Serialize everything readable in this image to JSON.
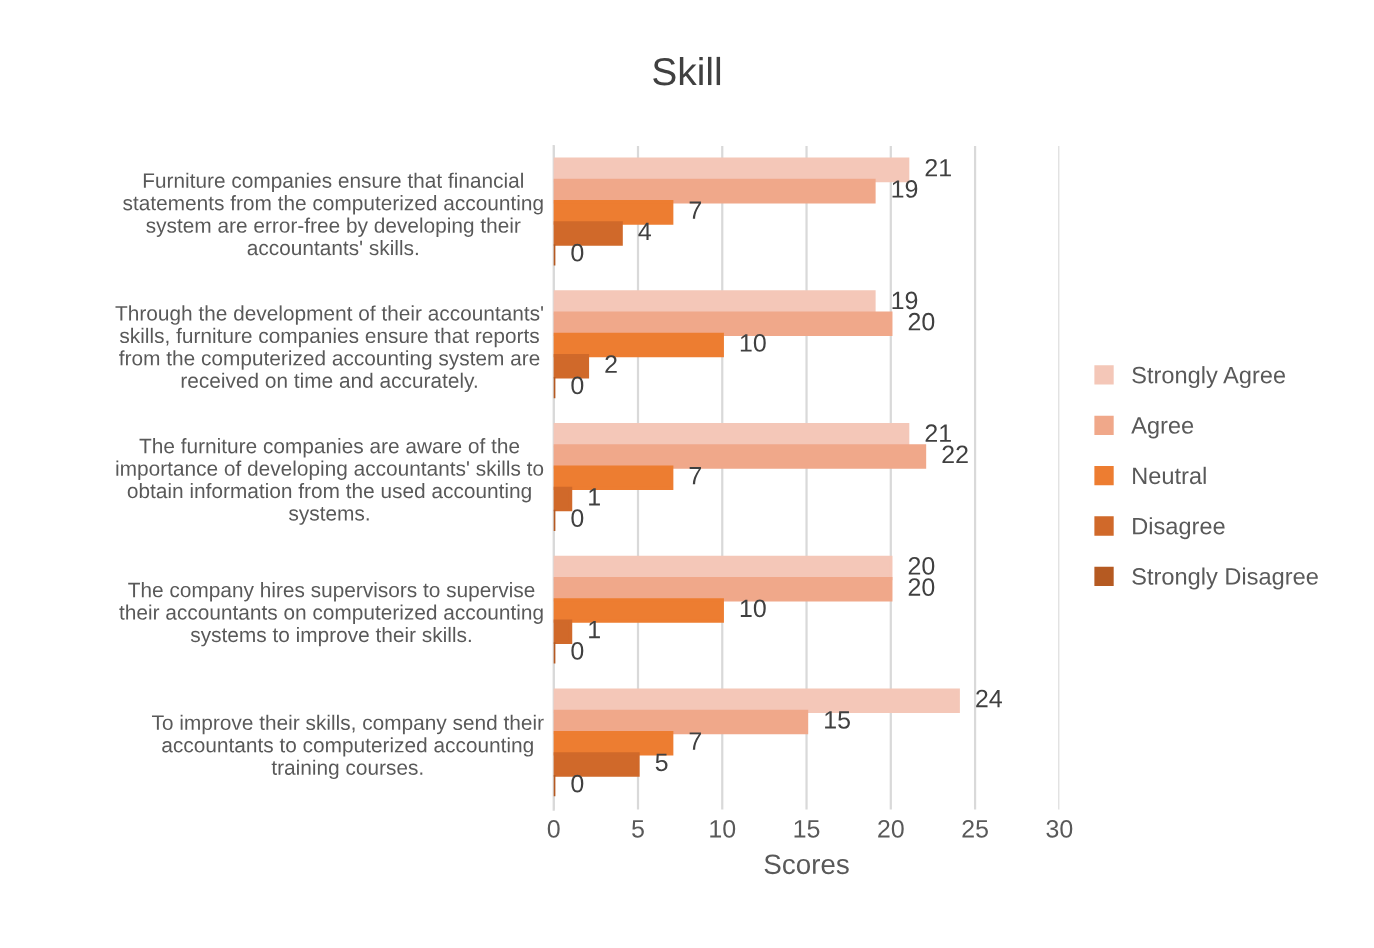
{
  "chart_data": {
    "type": "bar",
    "orientation": "horizontal",
    "title": "Skill",
    "xlabel": "Scores",
    "categories": [
      "Furniture companies ensure that financial\nstatements from the computerized accounting\nsystem are error-free by developing their\naccountants' skills.",
      "Through the development of their accountants'\nskills, furniture companies ensure that reports\nfrom the computerized accounting system are\nreceived on time and accurately.",
      "The furniture companies are aware of the\nimportance of developing accountants' skills to\nobtain information from the used accounting\nsystems.",
      "The company hires supervisors to supervise\ntheir accountants on computerized accounting\nsystems to improve their skills.",
      "To improve their skills, company send their\naccountants to computerized accounting\ntraining courses."
    ],
    "series": [
      {
        "name": "Strongly Agree",
        "color": "#f4c7b8",
        "values": [
          21,
          19,
          21,
          20,
          24
        ]
      },
      {
        "name": "Agree",
        "color": "#f0a88a",
        "values": [
          19,
          20,
          22,
          20,
          15
        ]
      },
      {
        "name": "Neutral",
        "color": "#ed7d31",
        "values": [
          7,
          10,
          7,
          10,
          7
        ]
      },
      {
        "name": "Disagree",
        "color": "#d0692a",
        "values": [
          4,
          2,
          1,
          1,
          5
        ]
      },
      {
        "name": "Strongly Disagree",
        "color": "#b55a22",
        "values": [
          0,
          0,
          0,
          0,
          0
        ]
      }
    ],
    "xlim": [
      0,
      30
    ],
    "xticks": [
      0,
      5,
      10,
      15,
      20,
      25,
      30
    ],
    "grid": "x",
    "legend": "right",
    "data_labels": true
  }
}
